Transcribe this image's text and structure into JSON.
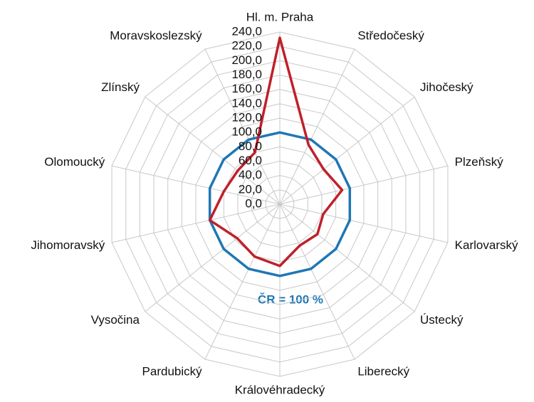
{
  "chart_data": {
    "type": "radar",
    "categories": [
      "Hl. m. Praha",
      "Středočeský",
      "Jihočeský",
      "Plzeňský",
      "Karlovarský",
      "Ústecký",
      "Liberecký",
      "Královéhradecký",
      "Pardubický",
      "Vysočina",
      "Jihomoravský",
      "Olomoucký",
      "Zlínský",
      "Moravskoslezský"
    ],
    "series": [
      {
        "color": "#1f77b4",
        "values": [
          100,
          100,
          100,
          100,
          100,
          100,
          100,
          100,
          100,
          100,
          100,
          100,
          100,
          100
        ]
      },
      {
        "color": "#c0202a",
        "values": [
          232,
          92,
          78,
          89,
          62,
          67,
          64,
          86,
          81,
          76,
          100,
          80,
          75,
          80
        ]
      }
    ],
    "ylim": [
      0,
      240
    ],
    "yticks": [
      {
        "value": 0,
        "label": "0,0"
      },
      {
        "value": 20,
        "label": "20,0"
      },
      {
        "value": 40,
        "label": "40,0"
      },
      {
        "value": 60,
        "label": "60,0"
      },
      {
        "value": 80,
        "label": "80,0"
      },
      {
        "value": 100,
        "label": "100,0"
      },
      {
        "value": 120,
        "label": "120,0"
      },
      {
        "value": 140,
        "label": "140,0"
      },
      {
        "value": 160,
        "label": "160,0"
      },
      {
        "value": 180,
        "label": "180,0"
      },
      {
        "value": 200,
        "label": "200,0"
      },
      {
        "value": 220,
        "label": "220,0"
      },
      {
        "value": 240,
        "label": "240,0"
      }
    ],
    "grid": true,
    "annotation": "ČR = 100 %"
  }
}
